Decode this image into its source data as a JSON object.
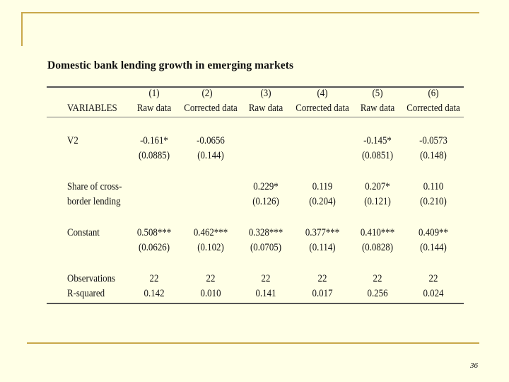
{
  "slide": {
    "title": "Domestic bank lending growth in emerging markets",
    "page_number": "36"
  },
  "table": {
    "col_numbers": [
      "(1)",
      "(2)",
      "(3)",
      "(4)",
      "(5)",
      "(6)"
    ],
    "col_labels": [
      "Raw data",
      "Corrected data",
      "Raw data",
      "Corrected data",
      "Raw data",
      "Corrected data"
    ],
    "variables_header": "VARIABLES",
    "rows": {
      "v2": {
        "label": "V2",
        "coef": [
          "-0.161*",
          "-0.0656",
          "",
          "",
          "-0.145*",
          "-0.0573"
        ],
        "se": [
          "(0.0885)",
          "(0.144)",
          "",
          "",
          "(0.0851)",
          "(0.148)"
        ]
      },
      "share": {
        "label_line1": "Share of cross-",
        "label_line2": "border lending",
        "coef": [
          "",
          "",
          "0.229*",
          "0.119",
          "0.207*",
          "0.110"
        ],
        "se": [
          "",
          "",
          "(0.126)",
          "(0.204)",
          "(0.121)",
          "(0.210)"
        ]
      },
      "constant": {
        "label": "Constant",
        "coef": [
          "0.508***",
          "0.462***",
          "0.328***",
          "0.377***",
          "0.410***",
          "0.409**"
        ],
        "se": [
          "(0.0626)",
          "(0.102)",
          "(0.0705)",
          "(0.114)",
          "(0.0828)",
          "(0.144)"
        ]
      },
      "observations": {
        "label": "Observations",
        "values": [
          "22",
          "22",
          "22",
          "22",
          "22",
          "22"
        ]
      },
      "rsquared": {
        "label": "R-squared",
        "values": [
          "0.142",
          "0.010",
          "0.141",
          "0.017",
          "0.256",
          "0.024"
        ]
      }
    }
  }
}
